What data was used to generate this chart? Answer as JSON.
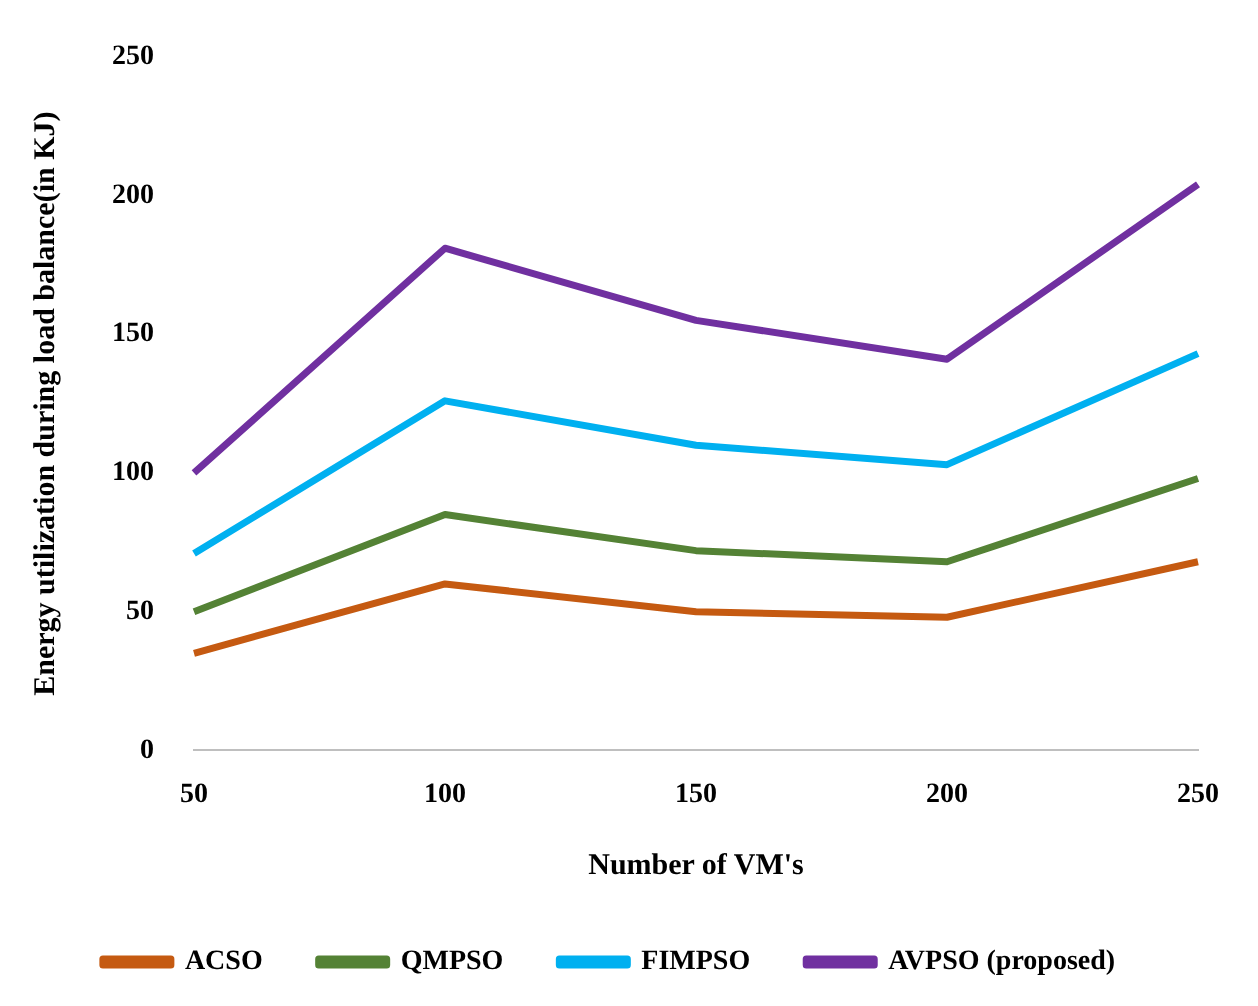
{
  "chart_data": {
    "type": "line",
    "xlabel": "Number of VM's",
    "ylabel": "Energy utilization during load balance(in KJ)",
    "categories": [
      "50",
      "100",
      "150",
      "200",
      "250"
    ],
    "series": [
      {
        "name": "ACSO",
        "color": "#c55a11",
        "values": [
          35,
          60,
          50,
          48,
          68
        ]
      },
      {
        "name": "QMPSO",
        "color": "#548235",
        "values": [
          50,
          85,
          72,
          68,
          98
        ]
      },
      {
        "name": "FIMPSO",
        "color": "#00b0f0",
        "values": [
          71,
          126,
          110,
          103,
          143
        ]
      },
      {
        "name": "AVPSO (proposed)",
        "color": "#7030a0",
        "values": [
          100,
          181,
          155,
          141,
          204
        ]
      }
    ],
    "ylim": [
      0,
      250
    ],
    "yticks": [
      0,
      50,
      100,
      150,
      200,
      250
    ],
    "grid": false,
    "legend": "bottom",
    "marker": "none",
    "line_style": "solid"
  }
}
